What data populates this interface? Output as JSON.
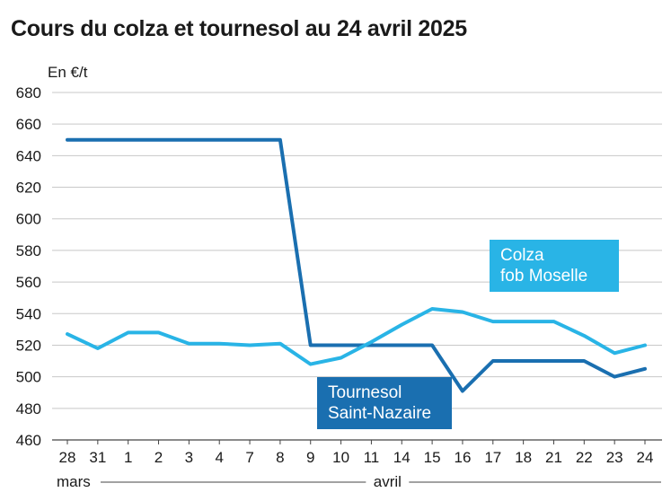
{
  "chart_data": {
    "type": "line",
    "title": "Cours du colza et tournesol au 24 avril 2025",
    "ylabel": "En €/t",
    "xlabel": "",
    "ylim": [
      460,
      680
    ],
    "yticks": [
      460,
      480,
      500,
      520,
      540,
      560,
      580,
      600,
      620,
      640,
      660,
      680
    ],
    "categories": [
      "28",
      "31",
      "1",
      "2",
      "3",
      "4",
      "7",
      "8",
      "9",
      "10",
      "11",
      "14",
      "15",
      "16",
      "17",
      "18",
      "21",
      "22",
      "23",
      "24"
    ],
    "months": [
      {
        "label": "mars",
        "start_index": 0,
        "end_index": 1
      },
      {
        "label": "avril",
        "start_index": 2,
        "end_index": 19
      }
    ],
    "grid": "horizontal",
    "series": [
      {
        "name": "Tournesol Saint-Nazaire",
        "label_lines": [
          "Tournesol",
          "Saint-Nazaire"
        ],
        "color": "#1a6fb0",
        "values": [
          650,
          650,
          650,
          650,
          650,
          650,
          650,
          650,
          520,
          520,
          520,
          520,
          520,
          491,
          510,
          510,
          510,
          510,
          500,
          505
        ]
      },
      {
        "name": "Colza fob Moselle",
        "label_lines": [
          "Colza",
          "fob Moselle"
        ],
        "color": "#29b4e6",
        "values": [
          527,
          518,
          528,
          528,
          521,
          521,
          520,
          521,
          508,
          512,
          522,
          533,
          543,
          541,
          535,
          535,
          535,
          526,
          515,
          520
        ]
      }
    ]
  }
}
